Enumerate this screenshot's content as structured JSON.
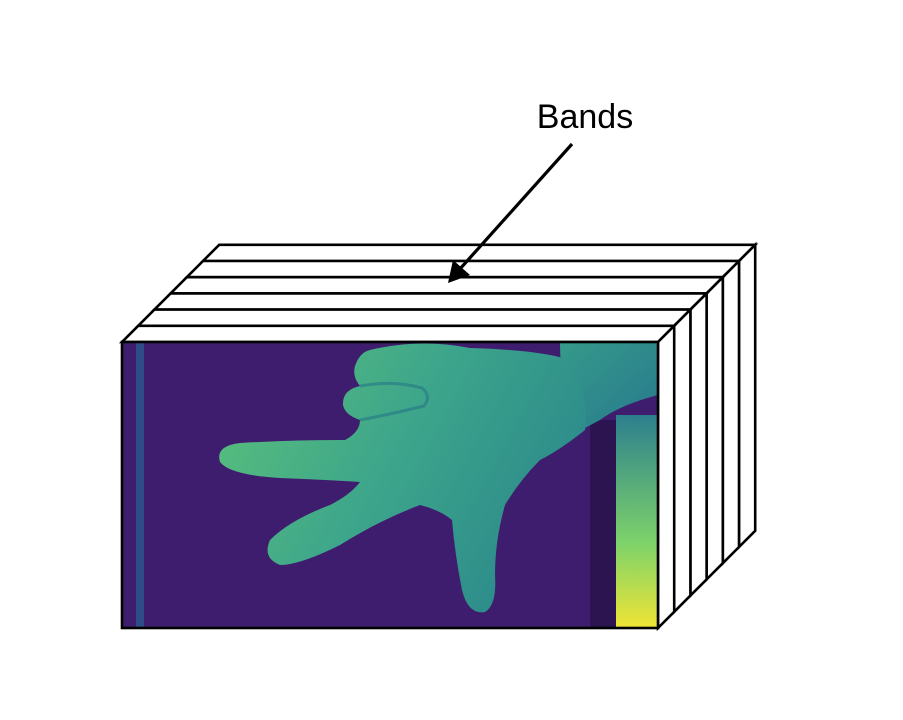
{
  "diagram": {
    "label": "Bands",
    "band_count": 6,
    "colors": {
      "background": "#ffffff",
      "outline": "#000000",
      "image_bg": "#3f1d6e",
      "image_bg_dark": "#35155e",
      "hand_light": "#56c17a",
      "hand_mid": "#3fa88a",
      "hand_dark": "#2f8f8c",
      "sleeve": "#2f8a8d",
      "highlight": "#f4e638"
    },
    "icons": {
      "arrow": "arrow-down-left-icon"
    }
  }
}
